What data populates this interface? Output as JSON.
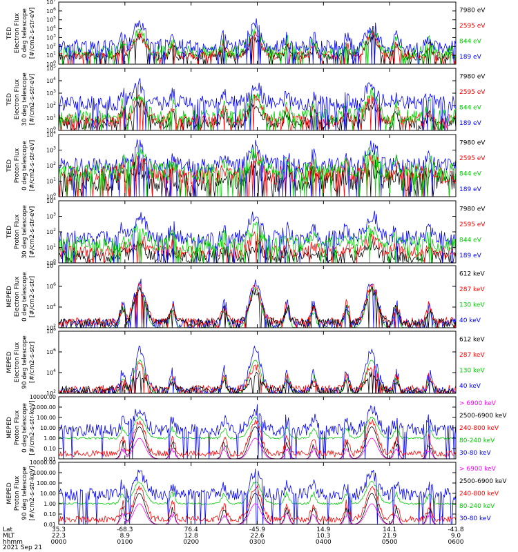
{
  "chart_data": {
    "type": "line",
    "title": "",
    "x_axis": {
      "rows": [
        {
          "label": "Lat",
          "values": [
            "35.3",
            "-68.3",
            "76.4",
            "-45.9",
            "14.9",
            "14.1",
            "-41.8"
          ]
        },
        {
          "label": "MLT",
          "values": [
            "22.3",
            "8.9",
            "12.8",
            "22.6",
            "10.3",
            "21.9",
            "9.0"
          ]
        },
        {
          "label": "hhmm",
          "values": [
            "0000",
            "0100",
            "0200",
            "0300",
            "0400",
            "0500",
            "0600"
          ]
        }
      ],
      "date": "2021 Sep 21",
      "time_range_hours": [
        0,
        6
      ]
    },
    "panels": [
      {
        "id": "ted-e-0",
        "ylabel": [
          "TED",
          "Electron Flux",
          "0 deg telescope",
          "[#/cm2-s-str-eV]"
        ],
        "scale": "log",
        "ylim_exp": [
          0,
          7
        ],
        "tick_labels": [
          "10^0",
          "10^1",
          "10^2",
          "10^3",
          "10^4",
          "10^5",
          "10^6",
          "10^7"
        ],
        "series": [
          {
            "name": "7980 eV",
            "color": "#000000",
            "base": 0.9,
            "noise": 0.5,
            "peak": 3.0
          },
          {
            "name": "2595 eV",
            "color": "#ff0000",
            "base": 1.0,
            "noise": 0.5,
            "peak": 3.4
          },
          {
            "name": "844 eV",
            "color": "#00cc00",
            "base": 1.4,
            "noise": 0.7,
            "peak": 3.8
          },
          {
            "name": "189 eV",
            "color": "#0000ff",
            "base": 2.0,
            "noise": 0.8,
            "peak": 4.4
          }
        ]
      },
      {
        "id": "ted-e-30",
        "ylabel": [
          "TED",
          "Electron Flux",
          "30 deg telescope",
          "[#/cm2-s-str-eV]"
        ],
        "scale": "log",
        "ylim_exp": [
          0,
          5
        ],
        "tick_labels": [
          "10^0",
          "10^1",
          "10^2",
          "10^3",
          "10^4",
          "10^5"
        ],
        "series": [
          {
            "name": "7980 eV",
            "color": "#000000",
            "base": 0.6,
            "noise": 0.5,
            "peak": 2.2
          },
          {
            "name": "2595 eV",
            "color": "#ff0000",
            "base": 0.8,
            "noise": 0.5,
            "peak": 2.6
          },
          {
            "name": "844 eV",
            "color": "#00cc00",
            "base": 1.1,
            "noise": 0.6,
            "peak": 2.9
          },
          {
            "name": "189 eV",
            "color": "#0000ff",
            "base": 2.2,
            "noise": 0.6,
            "peak": 3.6
          }
        ]
      },
      {
        "id": "ted-p-0",
        "ylabel": [
          "TED",
          "Proton Flux",
          "0 deg telescope",
          "[#/cm2-s-str-eV]"
        ],
        "scale": "log",
        "ylim_exp": [
          0,
          4
        ],
        "tick_labels": [
          "10^0",
          "10^1",
          "10^2",
          "10^3",
          "10^4"
        ],
        "series": [
          {
            "name": "7980 eV",
            "color": "#000000",
            "base": 1.0,
            "noise": 0.7,
            "peak": 1.9
          },
          {
            "name": "2595 eV",
            "color": "#ff0000",
            "base": 1.4,
            "noise": 0.6,
            "peak": 2.4
          },
          {
            "name": "189 eV",
            "color": "#0000ff",
            "base": 2.0,
            "noise": 0.5,
            "peak": 3.3
          },
          {
            "name": "844 eV",
            "color": "#00cc00",
            "base": 1.6,
            "noise": 0.6,
            "peak": 2.7
          }
        ]
      },
      {
        "id": "ted-p-30",
        "ylabel": [
          "TED",
          "Proton Flux",
          "30 deg telescope",
          "[#/cm2-s-str-eV]"
        ],
        "scale": "log",
        "ylim_exp": [
          0,
          4
        ],
        "tick_labels": [
          "10^0",
          "10^1",
          "10^2",
          "10^3",
          "10^4"
        ],
        "series": [
          {
            "name": "7980 eV",
            "color": "#000000",
            "base": 0.4,
            "noise": 0.4,
            "peak": 1.1
          },
          {
            "name": "2595 eV",
            "color": "#ff0000",
            "base": 0.7,
            "noise": 0.4,
            "peak": 1.6
          },
          {
            "name": "189 eV",
            "color": "#0000ff",
            "base": 1.6,
            "noise": 0.5,
            "peak": 3.1
          },
          {
            "name": "844 eV",
            "color": "#00cc00",
            "base": 1.2,
            "noise": 0.5,
            "peak": 2.3
          }
        ]
      },
      {
        "id": "meped-e-0",
        "ylabel": [
          "MEPED",
          "Electron Flux",
          "0 deg telescope",
          "[#/cm2-s-str]"
        ],
        "scale": "log",
        "ylim_exp": [
          2,
          8
        ],
        "tick_labels": [
          "10^2",
          "10^4",
          "10^6",
          "10^8"
        ],
        "series": [
          {
            "name": "130 keV",
            "color": "#00cc00",
            "base": 2.0,
            "noise": 0.05,
            "peak": 5.8
          },
          {
            "name": "40 keV",
            "color": "#0000ff",
            "base": 2.4,
            "noise": 0.5,
            "peak": 6.4
          },
          {
            "name": "287 keV",
            "color": "#ff0000",
            "base": 2.6,
            "noise": 0.4,
            "peak": 6.0
          },
          {
            "name": "612 keV",
            "color": "#000000",
            "base": 2.5,
            "noise": 0.4,
            "peak": 5.6
          }
        ]
      },
      {
        "id": "meped-e-90",
        "ylabel": [
          "MEPED",
          "Electron Flux",
          "90 deg telescope",
          "[#/cm2-s-str]"
        ],
        "scale": "log",
        "ylim_exp": [
          2,
          8
        ],
        "tick_labels": [
          "10^2",
          "10^4",
          "10^6",
          "10^8"
        ],
        "series": [
          {
            "name": "130 keV",
            "color": "#00cc00",
            "base": 2.0,
            "noise": 0.05,
            "peak": 5.2
          },
          {
            "name": "40 keV",
            "color": "#0000ff",
            "base": 2.2,
            "noise": 0.4,
            "peak": 6.2
          },
          {
            "name": "287 keV",
            "color": "#ff0000",
            "base": 2.4,
            "noise": 0.4,
            "peak": 4.6
          },
          {
            "name": "612 keV",
            "color": "#000000",
            "base": 2.3,
            "noise": 0.4,
            "peak": 3.8
          }
        ]
      },
      {
        "id": "meped-p-0",
        "ylabel": [
          "MEPED",
          "Proton Flux",
          "0 deg telescope",
          "[#/cm2-s-str-keV]"
        ],
        "scale": "log",
        "ylim_exp": [
          -2,
          4
        ],
        "tick_labels": [
          "0.01",
          "0.10",
          "1.00",
          "10.00",
          "100.00",
          "1000.00",
          "10000.00"
        ],
        "series": [
          {
            "name": "80-240 keV",
            "color": "#00cc00",
            "base": 0.0,
            "noise": 0.1,
            "peak": 2.0
          },
          {
            "name": "30-80 keV",
            "color": "#0000ff",
            "base": 0.8,
            "noise": 0.6,
            "peak": 2.8
          },
          {
            "name": "240-800 keV",
            "color": "#ff0000",
            "base": -1.5,
            "noise": 0.3,
            "peak": 1.6
          },
          {
            "name": "2500-6900 keV",
            "color": "#000000",
            "base": -2.0,
            "noise": 0.0,
            "peak": 1.1
          },
          {
            "name": "> 6900 keV",
            "color": "#ff00ff",
            "base": -2.0,
            "noise": 0.0,
            "peak": 0.0
          }
        ]
      },
      {
        "id": "meped-p-90",
        "ylabel": [
          "MEPED",
          "Proton Flux",
          "90 deg telescope",
          "[#/cm2-s-str-keV]"
        ],
        "scale": "log",
        "ylim_exp": [
          -2,
          4
        ],
        "tick_labels": [
          "0.01",
          "0.10",
          "1.00",
          "10.00",
          "100.00",
          "1000.00",
          "10000.00"
        ],
        "series": [
          {
            "name": "80-240 keV",
            "color": "#00cc00",
            "base": 0.0,
            "noise": 0.1,
            "peak": 2.1
          },
          {
            "name": "30-80 keV",
            "color": "#0000ff",
            "base": 0.9,
            "noise": 0.6,
            "peak": 2.9
          },
          {
            "name": "240-800 keV",
            "color": "#ff0000",
            "base": -1.5,
            "noise": 0.3,
            "peak": 1.6
          },
          {
            "name": "2500-6900 keV",
            "color": "#000000",
            "base": -2.0,
            "noise": 0.0,
            "peak": 1.0
          },
          {
            "name": "> 6900 keV",
            "color": "#ff00ff",
            "base": -2.0,
            "noise": 0.0,
            "peak": 0.0
          }
        ]
      }
    ],
    "legends": [
      [
        {
          "text": "7980 eV",
          "color": "#000000"
        },
        {
          "text": "2595 eV",
          "color": "#ff0000"
        },
        {
          "text": "844 eV",
          "color": "#00cc00"
        },
        {
          "text": "189 eV",
          "color": "#0000ff"
        }
      ],
      [
        {
          "text": "7980 eV",
          "color": "#000000"
        },
        {
          "text": "2595 eV",
          "color": "#ff0000"
        },
        {
          "text": "844 eV",
          "color": "#00cc00"
        },
        {
          "text": "189 eV",
          "color": "#0000ff"
        }
      ],
      [
        {
          "text": "7980 eV",
          "color": "#000000"
        },
        {
          "text": "2595 eV",
          "color": "#ff0000"
        },
        {
          "text": "844 eV",
          "color": "#00cc00"
        },
        {
          "text": "189 eV",
          "color": "#0000ff"
        }
      ],
      [
        {
          "text": "7980 eV",
          "color": "#000000"
        },
        {
          "text": "2595 eV",
          "color": "#ff0000"
        },
        {
          "text": "844 eV",
          "color": "#00cc00"
        },
        {
          "text": "189 eV",
          "color": "#0000ff"
        }
      ],
      [
        {
          "text": "612 keV",
          "color": "#000000"
        },
        {
          "text": "287 keV",
          "color": "#ff0000"
        },
        {
          "text": "130 keV",
          "color": "#00cc00"
        },
        {
          "text": "40 keV",
          "color": "#0000ff"
        }
      ],
      [
        {
          "text": "612 keV",
          "color": "#000000"
        },
        {
          "text": "287 keV",
          "color": "#ff0000"
        },
        {
          "text": "130 keV",
          "color": "#00cc00"
        },
        {
          "text": "40 keV",
          "color": "#0000ff"
        }
      ],
      [
        {
          "text": "> 6900 keV",
          "color": "#ff00ff"
        },
        {
          "text": "2500-6900 keV",
          "color": "#000000"
        },
        {
          "text": "240-800 keV",
          "color": "#ff0000"
        },
        {
          "text": "80-240 keV",
          "color": "#00cc00"
        },
        {
          "text": "30-80 keV",
          "color": "#0000ff"
        }
      ],
      [
        {
          "text": "> 6900 keV",
          "color": "#ff00ff"
        },
        {
          "text": "2500-6900 keV",
          "color": "#000000"
        },
        {
          "text": "240-800 keV",
          "color": "#ff0000"
        },
        {
          "text": "80-240 keV",
          "color": "#00cc00"
        },
        {
          "text": "30-80 keV",
          "color": "#0000ff"
        }
      ]
    ],
    "pass_centers_hours": [
      1.22,
      2.97,
      4.73
    ],
    "minor_peaks_hours": [
      0.97,
      1.72,
      2.5,
      3.45,
      3.85,
      4.35,
      5.1,
      5.6
    ],
    "grid": false,
    "legend_position": "right"
  }
}
